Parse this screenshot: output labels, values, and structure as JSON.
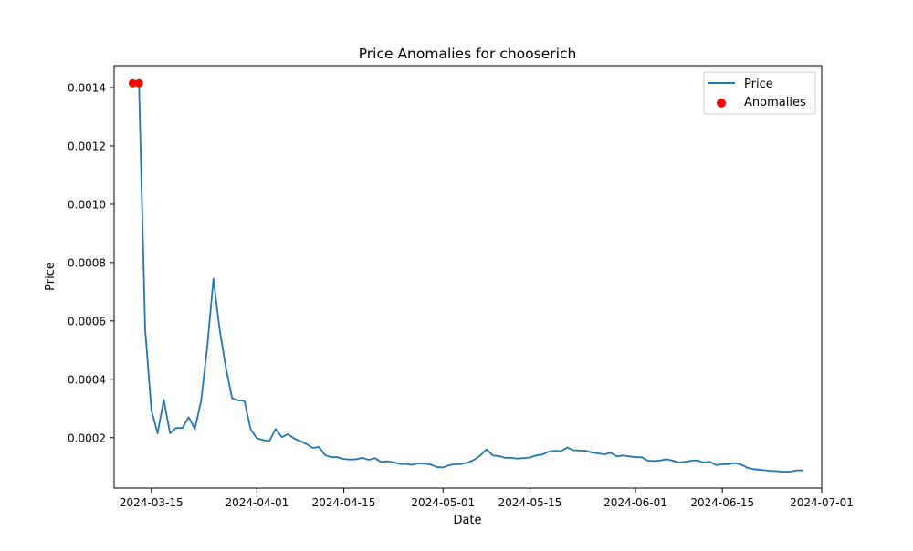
{
  "chart_data": {
    "type": "line",
    "title": "Price Anomalies for chooserich",
    "xlabel": "Date",
    "ylabel": "Price",
    "xlim": [
      "2024-03-09",
      "2024-07-01"
    ],
    "ylim": [
      2.73e-05,
      0.001475
    ],
    "x_ticks": [
      "2024-03-15",
      "2024-04-01",
      "2024-04-15",
      "2024-05-01",
      "2024-05-15",
      "2024-06-01",
      "2024-06-15",
      "2024-07-01"
    ],
    "y_ticks": [
      0.0002,
      0.0004,
      0.0006,
      0.0008,
      0.001,
      0.0012,
      0.0014
    ],
    "y_tick_labels": [
      "0.0002",
      "0.0004",
      "0.0006",
      "0.0008",
      "0.0010",
      "0.0012",
      "0.0014"
    ],
    "grid": false,
    "legend": {
      "position": "upper right",
      "entries": [
        "Price",
        "Anomalies"
      ]
    },
    "series": [
      {
        "name": "Price",
        "kind": "line",
        "color": "#1f77b4",
        "points": [
          [
            "2024-03-12",
            0.001415
          ],
          [
            "2024-03-13",
            0.001415
          ],
          [
            "2024-03-14",
            0.00057
          ],
          [
            "2024-03-15",
            0.000295
          ],
          [
            "2024-03-16",
            0.000215
          ],
          [
            "2024-03-17",
            0.00033
          ],
          [
            "2024-03-18",
            0.000215
          ],
          [
            "2024-03-19",
            0.000233
          ],
          [
            "2024-03-20",
            0.000233
          ],
          [
            "2024-03-21",
            0.00027
          ],
          [
            "2024-03-22",
            0.00023
          ],
          [
            "2024-03-23",
            0.000325
          ],
          [
            "2024-03-24",
            0.00051
          ],
          [
            "2024-03-25",
            0.000745
          ],
          [
            "2024-03-26",
            0.00057
          ],
          [
            "2024-03-27",
            0.00044
          ],
          [
            "2024-03-28",
            0.000335
          ],
          [
            "2024-03-29",
            0.000328
          ],
          [
            "2024-03-30",
            0.000325
          ],
          [
            "2024-03-31",
            0.000228
          ],
          [
            "2024-04-01",
            0.000198
          ],
          [
            "2024-04-02",
            0.000192
          ],
          [
            "2024-04-03",
            0.000188
          ],
          [
            "2024-04-04",
            0.00023
          ],
          [
            "2024-04-05",
            0.000202
          ],
          [
            "2024-04-06",
            0.000212
          ],
          [
            "2024-04-07",
            0.000197
          ],
          [
            "2024-04-08",
            0.000188
          ],
          [
            "2024-04-09",
            0.000178
          ],
          [
            "2024-04-10",
            0.000165
          ],
          [
            "2024-04-11",
            0.000168
          ],
          [
            "2024-04-12",
            0.00014
          ],
          [
            "2024-04-13",
            0.000133
          ],
          [
            "2024-04-14",
            0.000133
          ],
          [
            "2024-04-15",
            0.000127
          ],
          [
            "2024-04-16",
            0.000125
          ],
          [
            "2024-04-17",
            0.000126
          ],
          [
            "2024-04-18",
            0.000131
          ],
          [
            "2024-04-19",
            0.000124
          ],
          [
            "2024-04-20",
            0.00013
          ],
          [
            "2024-04-21",
            0.000117
          ],
          [
            "2024-04-22",
            0.000119
          ],
          [
            "2024-04-23",
            0.000116
          ],
          [
            "2024-04-24",
            0.00011
          ],
          [
            "2024-04-25",
            0.00011
          ],
          [
            "2024-04-26",
            0.000107
          ],
          [
            "2024-04-27",
            0.000112
          ],
          [
            "2024-04-28",
            0.000111
          ],
          [
            "2024-04-29",
            0.000108
          ],
          [
            "2024-04-30",
            9.9e-05
          ],
          [
            "2024-05-01",
            9.8e-05
          ],
          [
            "2024-05-02",
            0.000106
          ],
          [
            "2024-05-03",
            0.000109
          ],
          [
            "2024-05-04",
            0.00011
          ],
          [
            "2024-05-05",
            0.000115
          ],
          [
            "2024-05-06",
            0.000124
          ],
          [
            "2024-05-07",
            0.000139
          ],
          [
            "2024-05-08",
            0.00016
          ],
          [
            "2024-05-09",
            0.000139
          ],
          [
            "2024-05-10",
            0.000137
          ],
          [
            "2024-05-11",
            0.000131
          ],
          [
            "2024-05-12",
            0.000131
          ],
          [
            "2024-05-13",
            0.000128
          ],
          [
            "2024-05-14",
            0.00013
          ],
          [
            "2024-05-15",
            0.000132
          ],
          [
            "2024-05-16",
            0.000139
          ],
          [
            "2024-05-17",
            0.000142
          ],
          [
            "2024-05-18",
            0.000152
          ],
          [
            "2024-05-19",
            0.000155
          ],
          [
            "2024-05-20",
            0.000154
          ],
          [
            "2024-05-21",
            0.000166
          ],
          [
            "2024-05-22",
            0.000157
          ],
          [
            "2024-05-23",
            0.000156
          ],
          [
            "2024-05-24",
            0.000155
          ],
          [
            "2024-05-25",
            0.000149
          ],
          [
            "2024-05-26",
            0.000146
          ],
          [
            "2024-05-27",
            0.000143
          ],
          [
            "2024-05-28",
            0.000148
          ],
          [
            "2024-05-29",
            0.000136
          ],
          [
            "2024-05-30",
            0.000139
          ],
          [
            "2024-05-31",
            0.000136
          ],
          [
            "2024-06-01",
            0.000133
          ],
          [
            "2024-06-02",
            0.000133
          ],
          [
            "2024-06-03",
            0.000121
          ],
          [
            "2024-06-04",
            0.00012
          ],
          [
            "2024-06-05",
            0.000122
          ],
          [
            "2024-06-06",
            0.000126
          ],
          [
            "2024-06-07",
            0.000121
          ],
          [
            "2024-06-08",
            0.000115
          ],
          [
            "2024-06-09",
            0.000117
          ],
          [
            "2024-06-10",
            0.000121
          ],
          [
            "2024-06-11",
            0.000122
          ],
          [
            "2024-06-12",
            0.000115
          ],
          [
            "2024-06-13",
            0.000117
          ],
          [
            "2024-06-14",
            0.000106
          ],
          [
            "2024-06-15",
            0.000109
          ],
          [
            "2024-06-16",
            0.000109
          ],
          [
            "2024-06-17",
            0.000113
          ],
          [
            "2024-06-18",
            0.000108
          ],
          [
            "2024-06-19",
            9.7e-05
          ],
          [
            "2024-06-20",
            9.2e-05
          ],
          [
            "2024-06-21",
            9e-05
          ],
          [
            "2024-06-22",
            8.8e-05
          ],
          [
            "2024-06-23",
            8.6e-05
          ],
          [
            "2024-06-24",
            8.5e-05
          ],
          [
            "2024-06-25",
            8.3e-05
          ],
          [
            "2024-06-26",
            8.4e-05
          ],
          [
            "2024-06-27",
            8.8e-05
          ],
          [
            "2024-06-28",
            8.8e-05
          ]
        ]
      },
      {
        "name": "Anomalies",
        "kind": "scatter",
        "color": "#ff0000",
        "points": [
          [
            "2024-03-12",
            0.001415
          ],
          [
            "2024-03-13",
            0.001415
          ]
        ]
      }
    ]
  }
}
